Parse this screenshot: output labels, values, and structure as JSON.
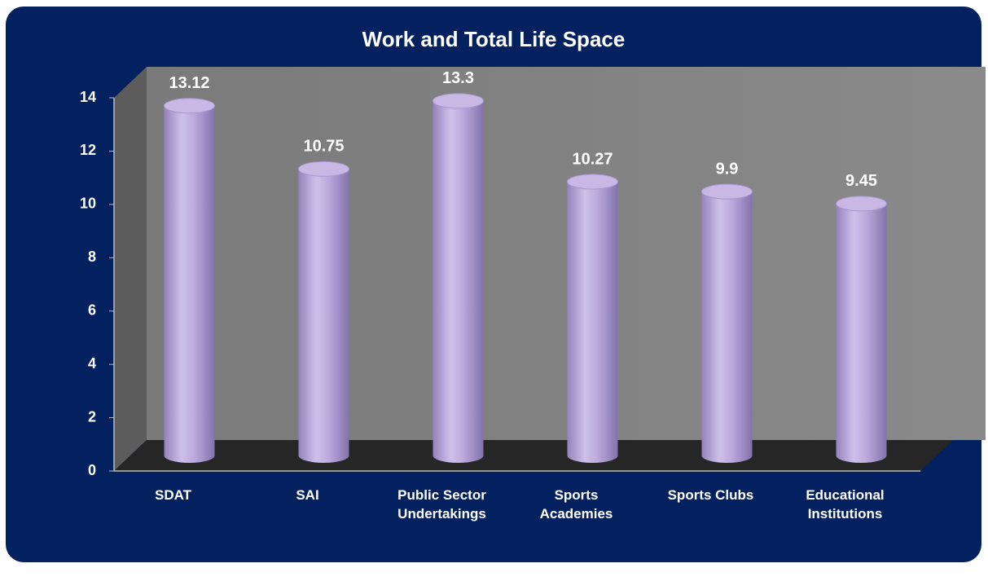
{
  "chart_data": {
    "type": "bar",
    "title": "Work and Total Life Space",
    "categories": [
      "SDAT",
      "SAI",
      "Public Sector Undertakings",
      "Sports Academies",
      "Sports Clubs",
      "Educational Institutions"
    ],
    "values": [
      13.12,
      10.75,
      13.3,
      10.27,
      9.9,
      9.45
    ],
    "color": "#b8a6d8",
    "ylim": [
      0,
      14
    ],
    "yticks": [
      0,
      2,
      4,
      6,
      8,
      10,
      12,
      14
    ]
  }
}
